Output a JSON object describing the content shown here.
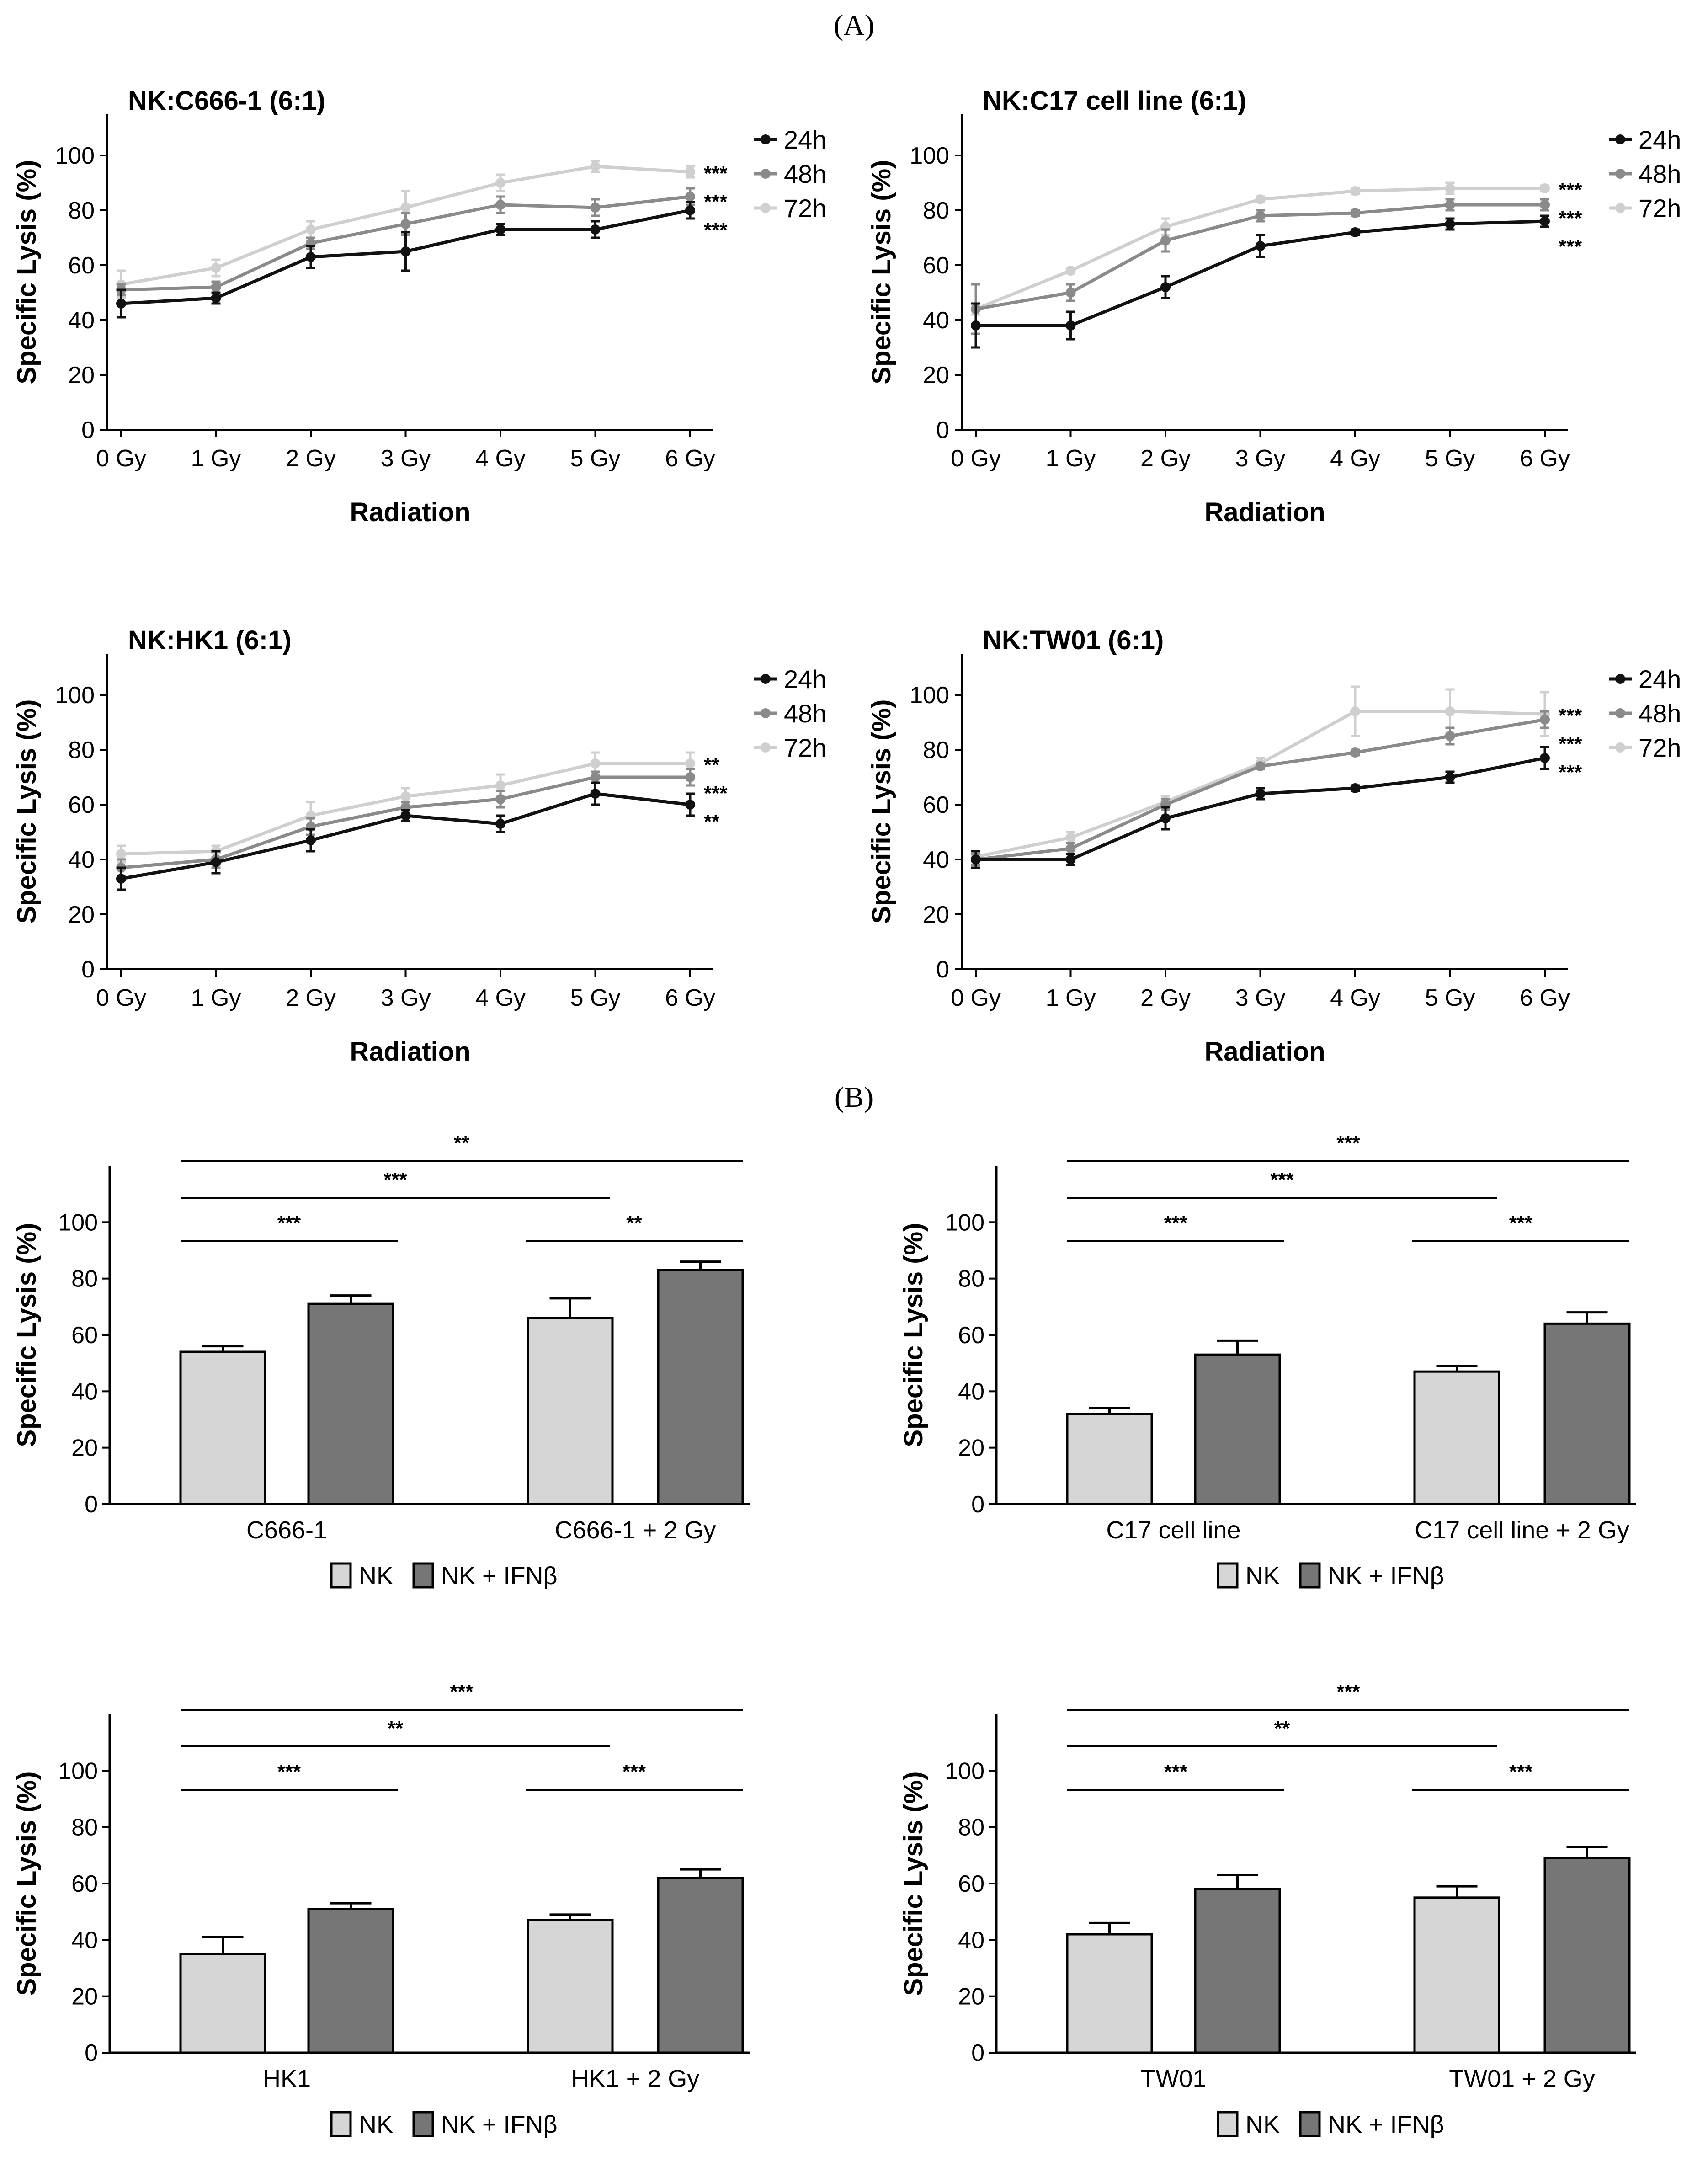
{
  "panels": {
    "a": "(A)",
    "b": "(B)"
  },
  "colors": {
    "h24": "#111111",
    "h48": "#8a8a8a",
    "h72": "#cfcfcf",
    "nk": "#d6d6d6",
    "ifn": "#767676"
  },
  "chart_data": [
    {
      "id": "l1",
      "type": "line",
      "title": "NK:C666-1 (6:1)",
      "xlabel": "Radiation",
      "ylabel": "Specific Lysis (%)",
      "ylim": [
        0,
        115
      ],
      "yticks": [
        0,
        20,
        40,
        60,
        80,
        100
      ],
      "categories": [
        "0 Gy",
        "1 Gy",
        "2 Gy",
        "3 Gy",
        "4 Gy",
        "5 Gy",
        "6 Gy"
      ],
      "series": [
        {
          "name": "24h",
          "values": [
            46,
            48,
            63,
            65,
            73,
            73,
            80
          ],
          "errors": [
            5,
            2,
            4,
            7,
            2,
            3,
            3
          ],
          "sig": "***"
        },
        {
          "name": "48h",
          "values": [
            51,
            52,
            68,
            75,
            82,
            81,
            85
          ],
          "errors": [
            2,
            2,
            2,
            4,
            3,
            3,
            3
          ],
          "sig": "***"
        },
        {
          "name": "72h",
          "values": [
            53,
            59,
            73,
            81,
            90,
            96,
            94
          ],
          "errors": [
            5,
            3,
            3,
            6,
            3,
            2,
            2
          ],
          "sig": "***"
        }
      ]
    },
    {
      "id": "l2",
      "type": "line",
      "title": "NK:C17 cell line (6:1)",
      "xlabel": "Radiation",
      "ylabel": "Specific Lysis (%)",
      "ylim": [
        0,
        115
      ],
      "yticks": [
        0,
        20,
        40,
        60,
        80,
        100
      ],
      "categories": [
        "0 Gy",
        "1 Gy",
        "2 Gy",
        "3 Gy",
        "4 Gy",
        "5 Gy",
        "6 Gy"
      ],
      "series": [
        {
          "name": "24h",
          "values": [
            38,
            38,
            52,
            67,
            72,
            75,
            76
          ],
          "errors": [
            8,
            5,
            4,
            4,
            1,
            2,
            2
          ],
          "sig": "***"
        },
        {
          "name": "48h",
          "values": [
            44,
            50,
            69,
            78,
            79,
            82,
            82
          ],
          "errors": [
            9,
            3,
            4,
            2,
            1,
            2,
            2
          ],
          "sig": "***"
        },
        {
          "name": "72h",
          "values": [
            44,
            58,
            74,
            84,
            87,
            88,
            88
          ],
          "errors": [
            2,
            1,
            3,
            1,
            1,
            2,
            1
          ],
          "sig": "***"
        }
      ]
    },
    {
      "id": "l3",
      "type": "line",
      "title": "NK:HK1 (6:1)",
      "xlabel": "Radiation",
      "ylabel": "Specific Lysis (%)",
      "ylim": [
        0,
        115
      ],
      "yticks": [
        0,
        20,
        40,
        60,
        80,
        100
      ],
      "categories": [
        "0 Gy",
        "1 Gy",
        "2 Gy",
        "3 Gy",
        "4 Gy",
        "5 Gy",
        "6 Gy"
      ],
      "series": [
        {
          "name": "24h",
          "values": [
            33,
            39,
            47,
            56,
            53,
            64,
            60
          ],
          "errors": [
            4,
            4,
            4,
            2,
            3,
            4,
            4
          ],
          "sig": "**"
        },
        {
          "name": "48h",
          "values": [
            37,
            40,
            52,
            59,
            62,
            70,
            70
          ],
          "errors": [
            3,
            3,
            3,
            2,
            3,
            2,
            3
          ],
          "sig": "***"
        },
        {
          "name": "72h",
          "values": [
            42,
            43,
            56,
            63,
            67,
            75,
            75
          ],
          "errors": [
            3,
            2,
            5,
            3,
            4,
            4,
            4
          ],
          "sig": "**"
        }
      ]
    },
    {
      "id": "l4",
      "type": "line",
      "title": "NK:TW01 (6:1)",
      "xlabel": "Radiation",
      "ylabel": "Specific Lysis (%)",
      "ylim": [
        0,
        115
      ],
      "yticks": [
        0,
        20,
        40,
        60,
        80,
        100
      ],
      "categories": [
        "0 Gy",
        "1 Gy",
        "2 Gy",
        "3 Gy",
        "4 Gy",
        "5 Gy",
        "6 Gy"
      ],
      "series": [
        {
          "name": "24h",
          "values": [
            40,
            40,
            55,
            64,
            66,
            70,
            77
          ],
          "errors": [
            3,
            2,
            4,
            2,
            1,
            2,
            4
          ],
          "sig": "***"
        },
        {
          "name": "48h",
          "values": [
            40,
            44,
            60,
            74,
            79,
            85,
            91
          ],
          "errors": [
            2,
            2,
            2,
            1,
            1,
            3,
            3
          ],
          "sig": "***"
        },
        {
          "name": "72h",
          "values": [
            41,
            48,
            61,
            75,
            94,
            94,
            93
          ],
          "errors": [
            2,
            2,
            2,
            2,
            9,
            8,
            8
          ],
          "sig": "***"
        }
      ]
    },
    {
      "id": "b1",
      "type": "bar",
      "ylabel": "Specific Lysis (%)",
      "ylim": [
        0,
        120
      ],
      "yticks": [
        0,
        20,
        40,
        60,
        80,
        100
      ],
      "categories": [
        "C666-1",
        "C666-1 + 2 Gy"
      ],
      "series": [
        {
          "name": "NK",
          "values": [
            54,
            66
          ],
          "errors": [
            2,
            7
          ]
        },
        {
          "name": "NK + IFNβ",
          "values": [
            71,
            83
          ],
          "errors": [
            3,
            3
          ]
        }
      ],
      "sig": [
        "***",
        "**",
        "***",
        "**"
      ]
    },
    {
      "id": "b2",
      "type": "bar",
      "ylabel": "Specific Lysis (%)",
      "ylim": [
        0,
        120
      ],
      "yticks": [
        0,
        20,
        40,
        60,
        80,
        100
      ],
      "categories": [
        "C17 cell line",
        "C17 cell line + 2 Gy"
      ],
      "series": [
        {
          "name": "NK",
          "values": [
            32,
            47
          ],
          "errors": [
            2,
            2
          ]
        },
        {
          "name": "NK + IFNβ",
          "values": [
            53,
            64
          ],
          "errors": [
            5,
            4
          ]
        }
      ],
      "sig": [
        "***",
        "***",
        "***",
        "***"
      ]
    },
    {
      "id": "b3",
      "type": "bar",
      "ylabel": "Specific Lysis (%)",
      "ylim": [
        0,
        120
      ],
      "yticks": [
        0,
        20,
        40,
        60,
        80,
        100
      ],
      "categories": [
        "HK1",
        "HK1 + 2 Gy"
      ],
      "series": [
        {
          "name": "NK",
          "values": [
            35,
            47
          ],
          "errors": [
            6,
            2
          ]
        },
        {
          "name": "NK + IFNβ",
          "values": [
            51,
            62
          ],
          "errors": [
            2,
            3
          ]
        }
      ],
      "sig": [
        "***",
        "***",
        "**",
        "***"
      ]
    },
    {
      "id": "b4",
      "type": "bar",
      "ylabel": "Specific Lysis (%)",
      "ylim": [
        0,
        120
      ],
      "yticks": [
        0,
        20,
        40,
        60,
        80,
        100
      ],
      "categories": [
        "TW01",
        "TW01 + 2 Gy"
      ],
      "series": [
        {
          "name": "NK",
          "values": [
            42,
            55
          ],
          "errors": [
            4,
            4
          ]
        },
        {
          "name": "NK + IFNβ",
          "values": [
            58,
            69
          ],
          "errors": [
            5,
            4
          ]
        }
      ],
      "sig": [
        "***",
        "***",
        "**",
        "***"
      ]
    }
  ]
}
